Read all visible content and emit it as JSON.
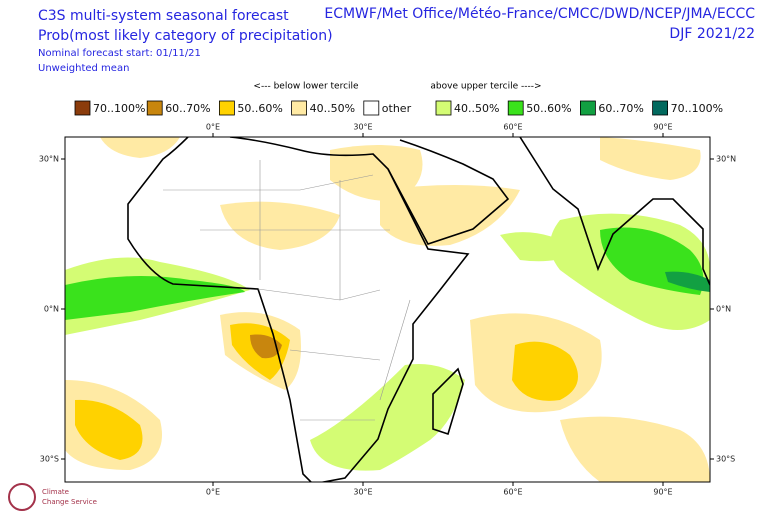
{
  "header": {
    "title": "C3S multi-system seasonal forecast",
    "subtitle": "Prob(most likely category of precipitation)",
    "start": "Nominal forecast start: 01/11/21",
    "method": "Unweighted mean",
    "centres": "ECMWF/Met Office/Météo-France/CMCC/DWD/NCEP/JMA/ECCC",
    "season": "DJF 2021/22"
  },
  "legend": {
    "below": "<--- below lower tercile",
    "above": "above upper tercile ---->",
    "items": [
      {
        "label": "70..100%",
        "color": "#8b3c0c"
      },
      {
        "label": "60..70%",
        "color": "#c8860e"
      },
      {
        "label": "50..60%",
        "color": "#ffd200"
      },
      {
        "label": "40..50%",
        "color": "#ffeaa4"
      },
      {
        "label": "other",
        "color": "#ffffff"
      },
      {
        "label": "40..50%",
        "color": "#d4fc74"
      },
      {
        "label": "50..60%",
        "color": "#3ae21c"
      },
      {
        "label": "60..70%",
        "color": "#12a042"
      },
      {
        "label": "70..100%",
        "color": "#02695e"
      }
    ]
  },
  "map": {
    "lonlim": [
      -29.6,
      99.4
    ],
    "latlim": [
      -34.6,
      34.4
    ],
    "lon_ticks": [
      {
        "value": 0,
        "label": "0°E"
      },
      {
        "value": 30,
        "label": "30°E"
      },
      {
        "value": 60,
        "label": "60°E"
      },
      {
        "value": 90,
        "label": "90°E"
      }
    ],
    "lat_ticks": [
      {
        "value": 30,
        "label": "30°N"
      },
      {
        "value": 0,
        "label": "0°N"
      },
      {
        "value": -30,
        "label": "30°S"
      }
    ]
  },
  "logo": {
    "line1": "Climate",
    "line2": "Change Service"
  }
}
